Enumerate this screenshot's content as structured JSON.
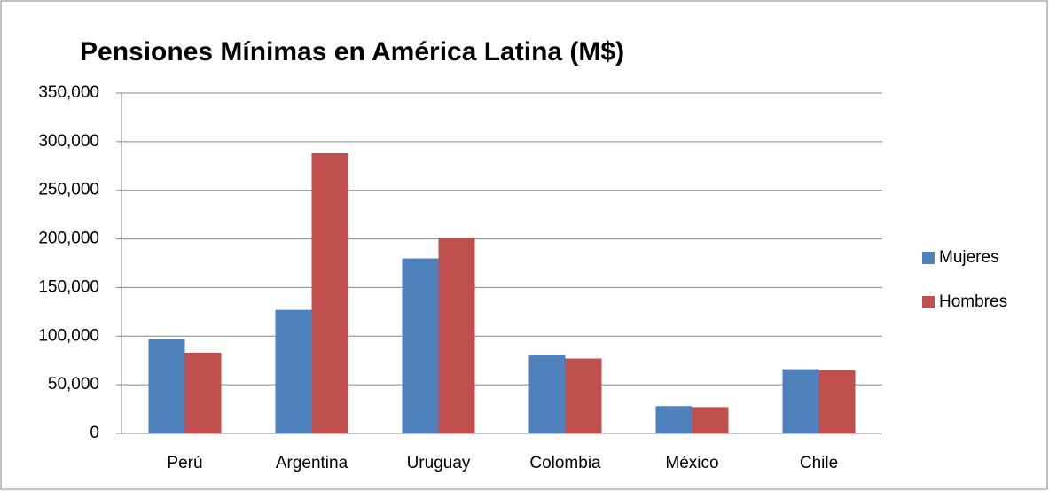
{
  "chart_data": {
    "type": "bar",
    "title": "Pensiones Mínimas en América Latina (M$)",
    "categories": [
      "Perú",
      "Argentina",
      "Uruguay",
      "Colombia",
      "México",
      "Chile"
    ],
    "series": [
      {
        "name": "Mujeres",
        "color": "#4f81bd",
        "values": [
          97000,
          127000,
          180000,
          81000,
          28000,
          66000
        ]
      },
      {
        "name": "Hombres",
        "color": "#c0504d",
        "values": [
          83000,
          288000,
          201000,
          77000,
          27000,
          65000
        ]
      }
    ],
    "ylim": [
      0,
      350000
    ],
    "yticks": [
      0,
      {
        "value": 50000,
        "label": "50,000"
      },
      {
        "value": 100000,
        "label": "100,000"
      },
      {
        "value": 150000,
        "label": "150,000"
      },
      {
        "value": 200000,
        "label": "200,000"
      },
      {
        "value": 250000,
        "label": "250,000"
      },
      {
        "value": 300000,
        "label": "300,000"
      },
      {
        "value": 350000,
        "label": "350,000"
      }
    ],
    "grid": true,
    "legend": "right"
  }
}
